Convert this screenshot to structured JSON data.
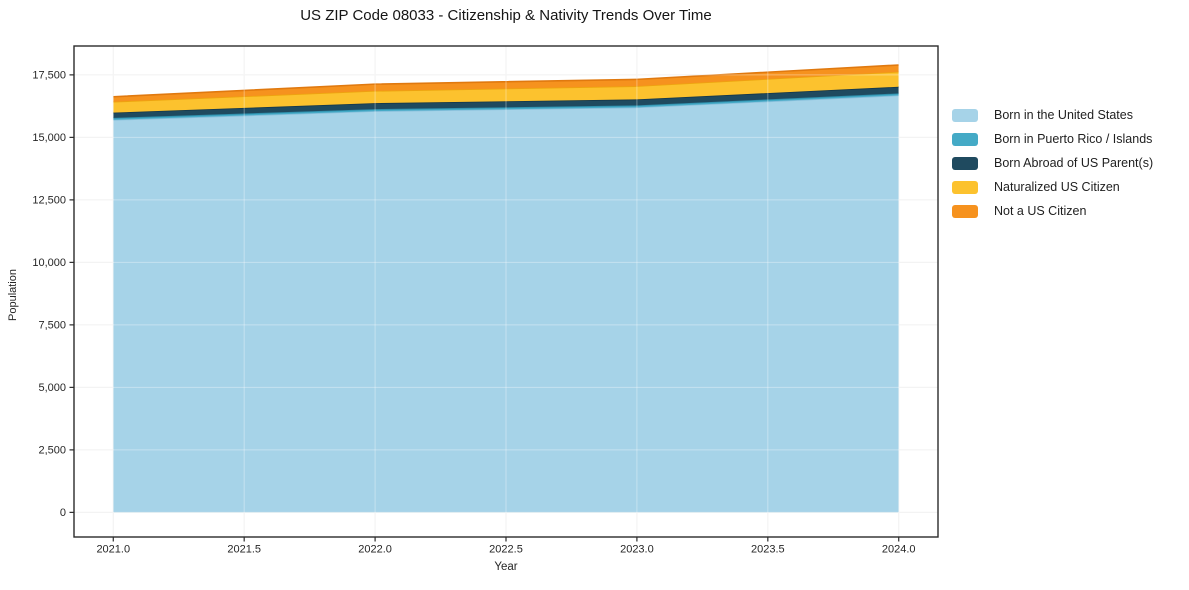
{
  "chart_data": {
    "type": "area",
    "stacked": true,
    "title": "US ZIP Code 08033 - Citizenship & Nativity Trends Over Time",
    "xlabel": "Year",
    "ylabel": "Population",
    "x": [
      2021,
      2022,
      2023,
      2024
    ],
    "series": [
      {
        "name": "Born in the United States",
        "values": [
          15700,
          16050,
          16200,
          16680
        ],
        "fill": "#a6d3e8",
        "edge": "#86bfdb"
      },
      {
        "name": "Born in Puerto Rico / Islands",
        "values": [
          80,
          80,
          80,
          80
        ],
        "fill": "#44aac6",
        "edge": "#2d8ca9"
      },
      {
        "name": "Born Abroad of US Parent(s)",
        "values": [
          210,
          240,
          240,
          265
        ],
        "fill": "#1f4a5f",
        "edge": "#15374a"
      },
      {
        "name": "Naturalized US Citizen",
        "values": [
          435,
          490,
          530,
          600
        ],
        "fill": "#fcc22e",
        "edge": "#eda40e"
      },
      {
        "name": "Not a US Citizen",
        "values": [
          200,
          270,
          270,
          270
        ],
        "fill": "#f6921e",
        "edge": "#e0790f"
      }
    ],
    "xlim": [
      2020.85,
      2024.15
    ],
    "ylim": [
      -985,
      18655
    ],
    "xticks": {
      "values": [
        2021.0,
        2021.5,
        2022.0,
        2022.5,
        2023.0,
        2023.5,
        2024.0
      ],
      "labels": [
        "2021.0",
        "2021.5",
        "2022.0",
        "2022.5",
        "2023.0",
        "2023.5",
        "2024.0"
      ]
    },
    "yticks": {
      "values": [
        0,
        2500,
        5000,
        7500,
        10000,
        12500,
        15000,
        17500
      ],
      "labels": [
        "0",
        "2,500",
        "5,000",
        "7,500",
        "10,000",
        "12,500",
        "15,000",
        "17,500"
      ]
    },
    "grid": true,
    "legend_position": "right-outside"
  }
}
